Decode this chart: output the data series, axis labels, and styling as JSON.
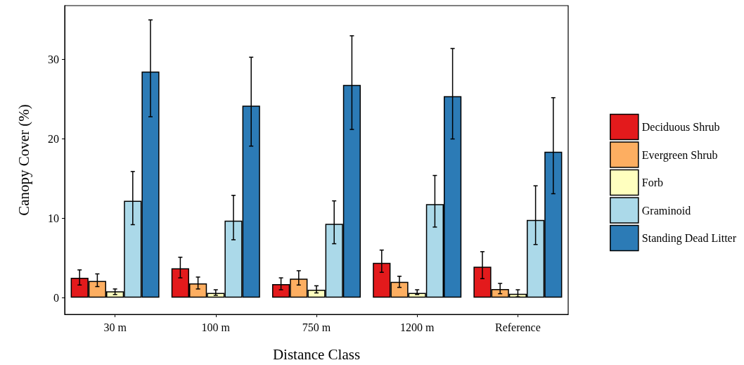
{
  "chart_data": {
    "type": "bar",
    "xlabel": "Distance Class",
    "ylabel": "Canopy Cover (%)",
    "categories": [
      "30 m",
      "100 m",
      "750 m",
      "1200 m",
      "Reference"
    ],
    "series": [
      {
        "name": "Deciduous Shrub",
        "color": "#e31a1c",
        "values": [
          2.5,
          3.7,
          1.7,
          4.4,
          3.9
        ],
        "errors": [
          [
            1.6,
            3.5
          ],
          [
            2.5,
            5.1
          ],
          [
            1.0,
            2.5
          ],
          [
            3.2,
            6.0
          ],
          [
            2.4,
            5.8
          ]
        ]
      },
      {
        "name": "Evergreen Shrub",
        "color": "#fdae61",
        "values": [
          2.1,
          1.8,
          2.4,
          2.0,
          1.1
        ],
        "errors": [
          [
            1.4,
            3.0
          ],
          [
            1.1,
            2.6
          ],
          [
            1.6,
            3.4
          ],
          [
            1.3,
            2.7
          ],
          [
            0.5,
            1.8
          ]
        ]
      },
      {
        "name": "Forb",
        "color": "#ffffbf",
        "values": [
          0.8,
          0.6,
          1.0,
          0.6,
          0.5
        ],
        "errors": [
          [
            0.4,
            1.1
          ],
          [
            0.3,
            1.0
          ],
          [
            0.6,
            1.5
          ],
          [
            0.4,
            1.0
          ],
          [
            0.1,
            1.0
          ]
        ]
      },
      {
        "name": "Graminoid",
        "color": "#abd9e9",
        "values": [
          12.2,
          9.7,
          9.3,
          11.8,
          9.8
        ],
        "errors": [
          [
            9.2,
            15.9
          ],
          [
            7.3,
            12.9
          ],
          [
            6.8,
            12.2
          ],
          [
            8.9,
            15.4
          ],
          [
            6.7,
            14.1
          ]
        ]
      },
      {
        "name": "Standing Dead Litter",
        "color": "#2c7bb6",
        "values": [
          28.5,
          24.2,
          26.8,
          25.4,
          18.4
        ],
        "errors": [
          [
            22.8,
            35.0
          ],
          [
            19.1,
            30.3
          ],
          [
            21.2,
            33.0
          ],
          [
            20.0,
            31.4
          ],
          [
            13.1,
            25.2
          ]
        ]
      }
    ],
    "ylim": [
      -2.1,
      36.8
    ],
    "yticks": [
      0,
      10,
      20,
      30
    ],
    "grid": false,
    "legend": "right"
  }
}
